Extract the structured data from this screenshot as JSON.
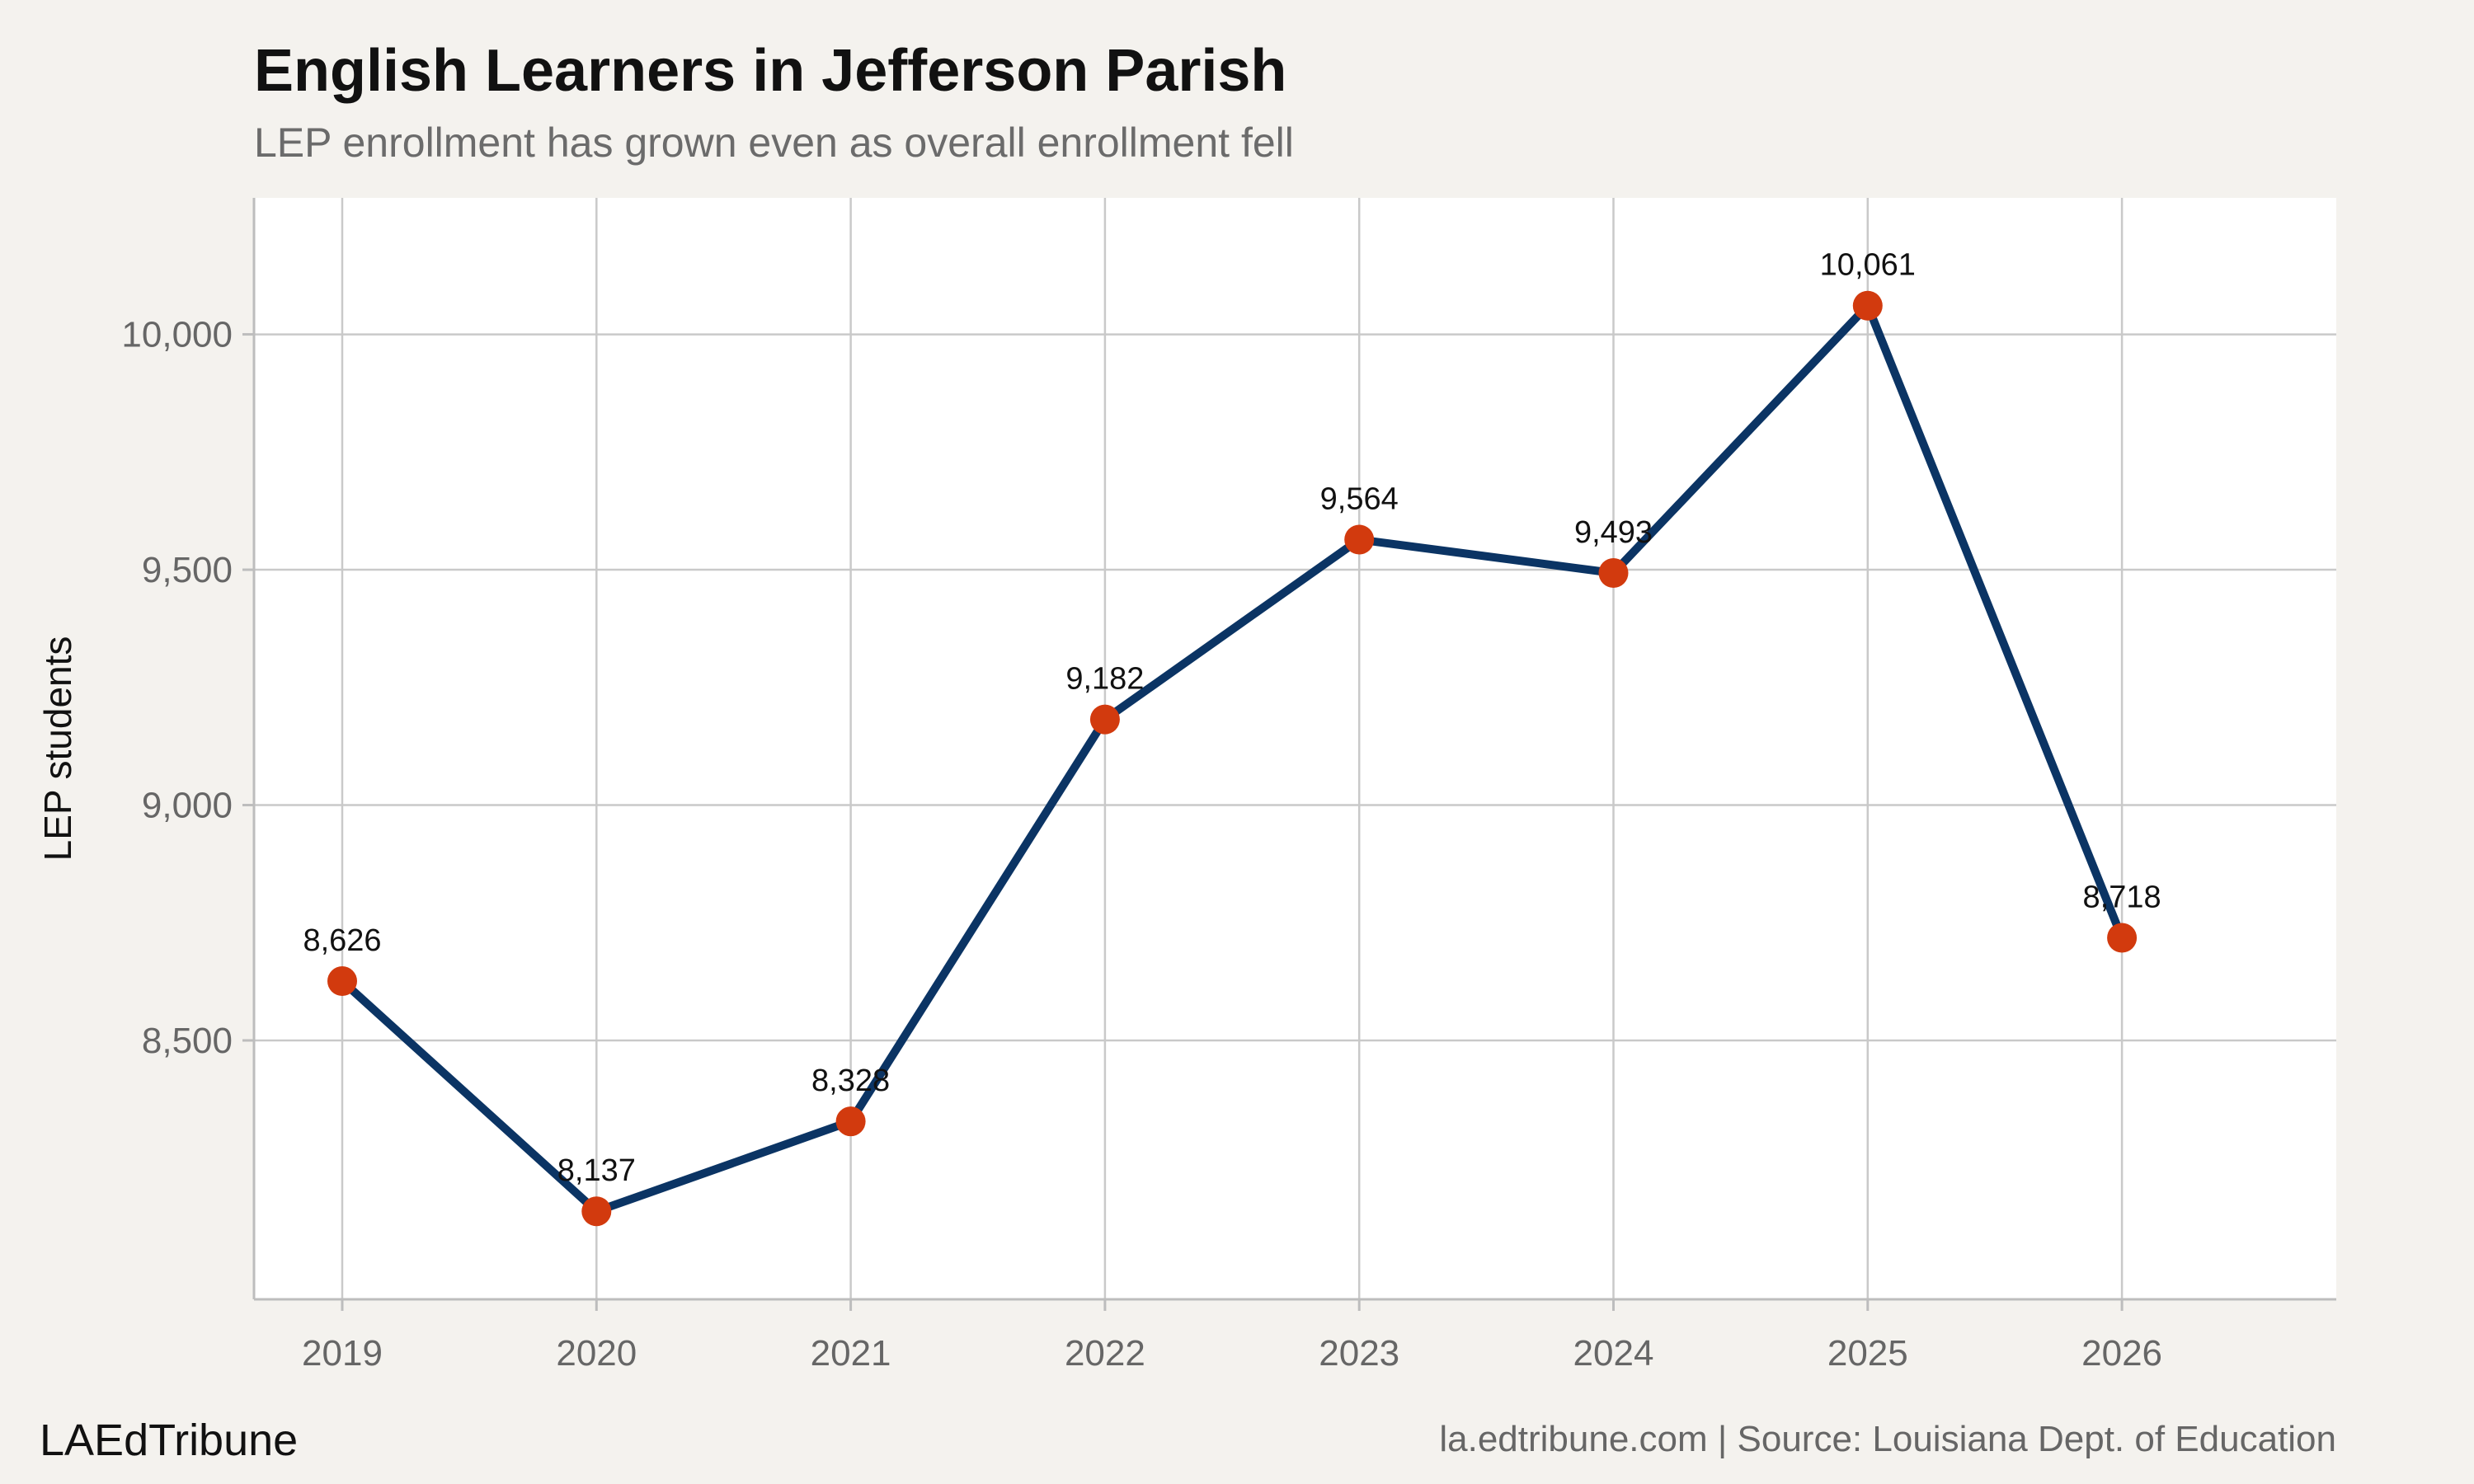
{
  "title": "English Learners in Jefferson Parish",
  "subtitle": "LEP enrollment has grown even as overall enrollment fell",
  "brand": "LAEdTribune",
  "caption": "la.edtribune.com | Source: Louisiana Dept. of Education",
  "colors": {
    "background": "#f4f2ee",
    "plot_background": "#ffffff",
    "line": "#0b3464",
    "marker": "#d23a0e"
  },
  "chart_data": {
    "type": "line",
    "title": "English Learners in Jefferson Parish",
    "subtitle": "LEP enrollment has grown even as overall enrollment fell",
    "xlabel": "",
    "ylabel": "LEP students",
    "x": [
      "2019",
      "2020",
      "2021",
      "2022",
      "2023",
      "2024",
      "2025",
      "2026"
    ],
    "series": [
      {
        "values": [
          8626,
          8137,
          8328,
          9182,
          9564,
          9493,
          10061,
          8718
        ],
        "labels": [
          "8,626",
          "8,137",
          "8,328",
          "9,182",
          "9,564",
          "9,493",
          "10,061",
          "8,718"
        ]
      }
    ],
    "yticks": [
      8500,
      9000,
      9500,
      10000
    ],
    "ytick_labels": [
      "8,500",
      "9,000",
      "9,500",
      "10,000"
    ],
    "ylim": [
      7950,
      10290
    ],
    "grid": true,
    "legend": "none"
  }
}
